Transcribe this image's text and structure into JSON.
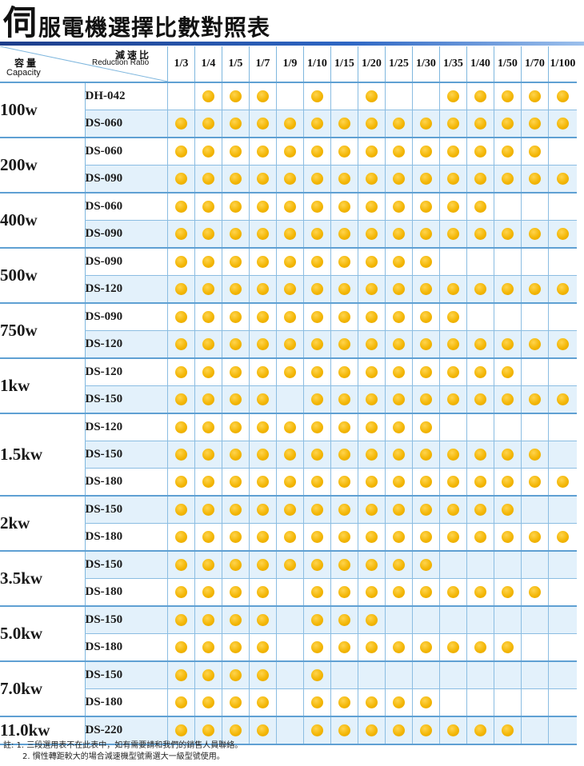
{
  "title": {
    "big_char": "伺",
    "rest": "服電機選擇比數對照表"
  },
  "header": {
    "capacity_cn": "容量",
    "capacity_en": "Capacity",
    "ratio_cn": "減速比",
    "ratio_en": "Reduction Ratio",
    "ratios": [
      "1/3",
      "1/4",
      "1/5",
      "1/7",
      "1/9",
      "1/10",
      "1/15",
      "1/20",
      "1/25",
      "1/30",
      "1/35",
      "1/40",
      "1/50",
      "1/70",
      "1/100"
    ]
  },
  "groups": [
    {
      "capacity": "100w",
      "rows": [
        {
          "model": "DH-042",
          "marks": [
            0,
            1,
            1,
            1,
            0,
            1,
            0,
            1,
            0,
            0,
            1,
            1,
            1,
            1,
            1
          ]
        },
        {
          "model": "DS-060",
          "marks": [
            1,
            1,
            1,
            1,
            1,
            1,
            1,
            1,
            1,
            1,
            1,
            1,
            1,
            1,
            1
          ]
        }
      ]
    },
    {
      "capacity": "200w",
      "rows": [
        {
          "model": "DS-060",
          "marks": [
            1,
            1,
            1,
            1,
            1,
            1,
            1,
            1,
            1,
            1,
            1,
            1,
            1,
            1,
            0
          ]
        },
        {
          "model": "DS-090",
          "marks": [
            1,
            1,
            1,
            1,
            1,
            1,
            1,
            1,
            1,
            1,
            1,
            1,
            1,
            1,
            1
          ]
        }
      ]
    },
    {
      "capacity": "400w",
      "rows": [
        {
          "model": "DS-060",
          "marks": [
            1,
            1,
            1,
            1,
            1,
            1,
            1,
            1,
            1,
            1,
            1,
            1,
            0,
            0,
            0
          ]
        },
        {
          "model": "DS-090",
          "marks": [
            1,
            1,
            1,
            1,
            1,
            1,
            1,
            1,
            1,
            1,
            1,
            1,
            1,
            1,
            1
          ]
        }
      ]
    },
    {
      "capacity": "500w",
      "rows": [
        {
          "model": "DS-090",
          "marks": [
            1,
            1,
            1,
            1,
            1,
            1,
            1,
            1,
            1,
            1,
            0,
            0,
            0,
            0,
            0
          ]
        },
        {
          "model": "DS-120",
          "marks": [
            1,
            1,
            1,
            1,
            1,
            1,
            1,
            1,
            1,
            1,
            1,
            1,
            1,
            1,
            1
          ]
        }
      ]
    },
    {
      "capacity": "750w",
      "rows": [
        {
          "model": "DS-090",
          "marks": [
            1,
            1,
            1,
            1,
            1,
            1,
            1,
            1,
            1,
            1,
            1,
            0,
            0,
            0,
            0
          ]
        },
        {
          "model": "DS-120",
          "marks": [
            1,
            1,
            1,
            1,
            1,
            1,
            1,
            1,
            1,
            1,
            1,
            1,
            1,
            1,
            1
          ]
        }
      ]
    },
    {
      "capacity": "1kw",
      "rows": [
        {
          "model": "DS-120",
          "marks": [
            1,
            1,
            1,
            1,
            1,
            1,
            1,
            1,
            1,
            1,
            1,
            1,
            1,
            0,
            0
          ]
        },
        {
          "model": "DS-150",
          "marks": [
            1,
            1,
            1,
            1,
            0,
            1,
            1,
            1,
            1,
            1,
            1,
            1,
            1,
            1,
            1
          ]
        }
      ]
    },
    {
      "capacity": "1.5kw",
      "rows": [
        {
          "model": "DS-120",
          "marks": [
            1,
            1,
            1,
            1,
            1,
            1,
            1,
            1,
            1,
            1,
            0,
            0,
            0,
            0,
            0
          ]
        },
        {
          "model": "DS-150",
          "marks": [
            1,
            1,
            1,
            1,
            1,
            1,
            1,
            1,
            1,
            1,
            1,
            1,
            1,
            1,
            0
          ]
        },
        {
          "model": "DS-180",
          "marks": [
            1,
            1,
            1,
            1,
            1,
            1,
            1,
            1,
            1,
            1,
            1,
            1,
            1,
            1,
            1
          ]
        }
      ]
    },
    {
      "capacity": "2kw",
      "rows": [
        {
          "model": "DS-150",
          "marks": [
            1,
            1,
            1,
            1,
            1,
            1,
            1,
            1,
            1,
            1,
            1,
            1,
            1,
            0,
            0
          ]
        },
        {
          "model": "DS-180",
          "marks": [
            1,
            1,
            1,
            1,
            1,
            1,
            1,
            1,
            1,
            1,
            1,
            1,
            1,
            1,
            1
          ]
        }
      ]
    },
    {
      "capacity": "3.5kw",
      "rows": [
        {
          "model": "DS-150",
          "marks": [
            1,
            1,
            1,
            1,
            1,
            1,
            1,
            1,
            1,
            1,
            0,
            0,
            0,
            0,
            0
          ]
        },
        {
          "model": "DS-180",
          "marks": [
            1,
            1,
            1,
            1,
            0,
            1,
            1,
            1,
            1,
            1,
            1,
            1,
            1,
            1,
            0
          ]
        }
      ]
    },
    {
      "capacity": "5.0kw",
      "rows": [
        {
          "model": "DS-150",
          "marks": [
            1,
            1,
            1,
            1,
            0,
            1,
            1,
            1,
            0,
            0,
            0,
            0,
            0,
            0,
            0
          ]
        },
        {
          "model": "DS-180",
          "marks": [
            1,
            1,
            1,
            1,
            0,
            1,
            1,
            1,
            1,
            1,
            1,
            1,
            1,
            0,
            0
          ]
        }
      ]
    },
    {
      "capacity": "7.0kw",
      "rows": [
        {
          "model": "DS-150",
          "marks": [
            1,
            1,
            1,
            1,
            0,
            1,
            0,
            0,
            0,
            0,
            0,
            0,
            0,
            0,
            0
          ]
        },
        {
          "model": "DS-180",
          "marks": [
            1,
            1,
            1,
            1,
            0,
            1,
            1,
            1,
            1,
            1,
            0,
            0,
            0,
            0,
            0
          ]
        }
      ]
    },
    {
      "capacity": "11.0kw",
      "rows": [
        {
          "model": "DS-220",
          "marks": [
            1,
            1,
            1,
            1,
            0,
            1,
            1,
            1,
            1,
            1,
            1,
            1,
            1,
            0,
            0
          ]
        }
      ]
    }
  ],
  "notes": {
    "line1": "註: 1. 三段選用表不在此表中，如有需要請和我們的銷售人員聯絡。",
    "line2": "2. 慣性轉距較大的場合減速機型號需選大一級型號使用。"
  }
}
